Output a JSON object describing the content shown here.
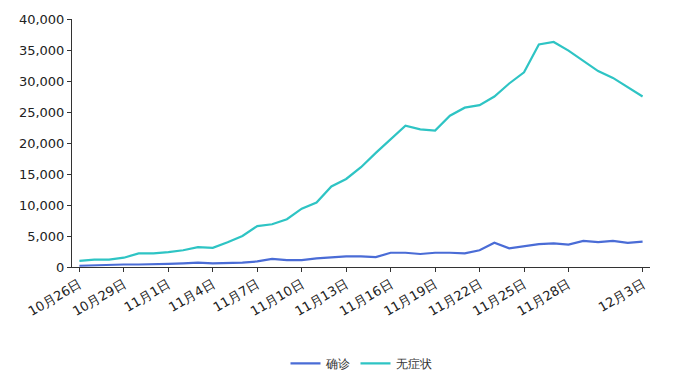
{
  "chart_data": {
    "type": "line",
    "categories": [
      "10月26日",
      null,
      null,
      "10月29日",
      null,
      null,
      "11月1日",
      null,
      null,
      "11月4日",
      null,
      null,
      "11月7日",
      null,
      null,
      "11月10日",
      null,
      null,
      "11月13日",
      null,
      null,
      "11月16日",
      null,
      null,
      "11月19日",
      null,
      null,
      "11月22日",
      null,
      null,
      "11月25日",
      null,
      null,
      "11月28日",
      null,
      null,
      null,
      null,
      "12月3日"
    ],
    "series": [
      {
        "name": "确诊",
        "color": "#4a6cd6",
        "values": [
          200,
          300,
          300,
          400,
          400,
          400,
          500,
          600,
          700,
          600,
          600,
          700,
          900,
          1300,
          1100,
          1100,
          1400,
          1600,
          1700,
          1700,
          1600,
          2300,
          2300,
          2100,
          2300,
          2300,
          2200,
          2700,
          3900,
          3000,
          3400,
          3700,
          3800,
          3600,
          4200,
          4000,
          4200,
          3900,
          4100
        ]
      },
      {
        "name": "无症状",
        "color": "#2ec4c4",
        "values": [
          1000,
          1200,
          1200,
          1500,
          2200,
          2200,
          2400,
          2700,
          3200,
          3100,
          4000,
          5000,
          6600,
          6900,
          7700,
          9400,
          10400,
          13000,
          14200,
          16100,
          18400,
          20600,
          22800,
          22200,
          22000,
          24400,
          25700,
          26100,
          27500,
          29600,
          31400,
          35900,
          36300,
          34900,
          33200,
          31600,
          30500,
          29000,
          27500
        ]
      }
    ],
    "ylim": [
      0,
      40000
    ],
    "yticks": [
      0,
      {
        "value": 5000,
        "label": "5,000"
      },
      {
        "value": 10000,
        "label": "10,000"
      },
      {
        "value": 15000,
        "label": "15,000"
      },
      {
        "value": 20000,
        "label": "20,000"
      },
      {
        "value": 25000,
        "label": "25,000"
      },
      {
        "value": 30000,
        "label": "30,000"
      },
      {
        "value": 35000,
        "label": "35,000"
      },
      {
        "value": 40000,
        "label": "40,000"
      }
    ],
    "grid": false,
    "legend": "bottom"
  }
}
